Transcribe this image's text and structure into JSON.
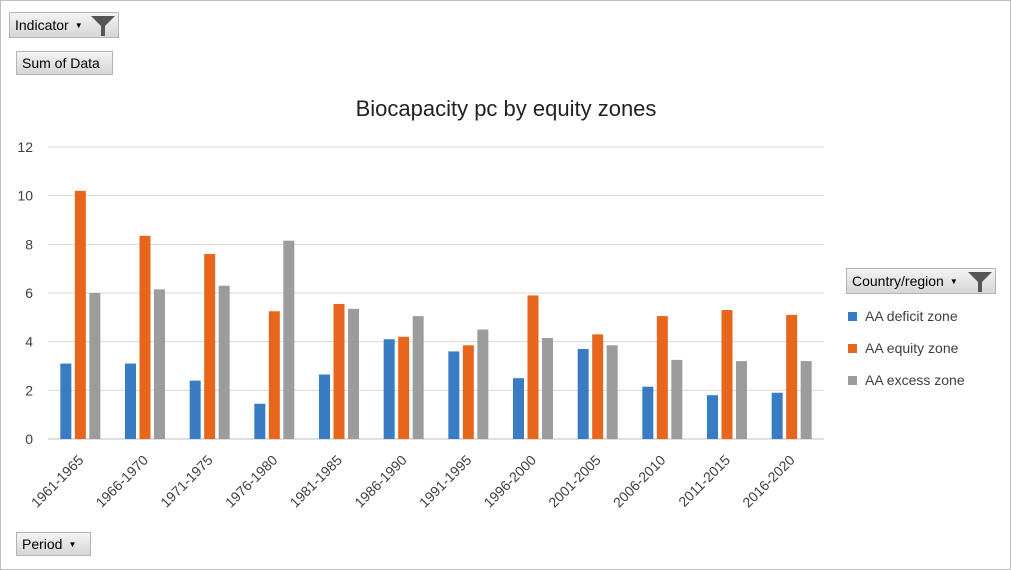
{
  "filters": {
    "indicator_label": "Indicator",
    "sum_label": "Sum of Data",
    "period_label": "Period",
    "legend_field_label": "Country/region"
  },
  "colors": {
    "deficit": "#3a7cc4",
    "equity": "#e8661c",
    "excess": "#9c9c9c",
    "grid": "#d9d9d9",
    "axis_text": "#404040"
  },
  "chart_data": {
    "type": "bar",
    "title": "Biocapacity pc by equity zones",
    "xlabel": "",
    "ylabel": "",
    "ylim": [
      0,
      12
    ],
    "yticks": [
      0,
      2,
      4,
      6,
      8,
      10,
      12
    ],
    "grid": true,
    "legend_position": "right",
    "categories": [
      "1961-1965",
      "1966-1970",
      "1971-1975",
      "1976-1980",
      "1981-1985",
      "1986-1990",
      "1991-1995",
      "1996-2000",
      "2001-2005",
      "2006-2010",
      "2011-2015",
      "2016-2020"
    ],
    "series": [
      {
        "name": "AA deficit zone",
        "color_key": "deficit",
        "values": [
          3.1,
          3.1,
          2.4,
          1.45,
          2.65,
          4.1,
          3.6,
          2.5,
          3.7,
          2.15,
          1.8,
          1.9
        ]
      },
      {
        "name": "AA equity zone",
        "color_key": "equity",
        "values": [
          10.2,
          8.35,
          7.6,
          5.25,
          5.55,
          4.2,
          3.85,
          5.9,
          4.3,
          5.05,
          5.3,
          5.1
        ]
      },
      {
        "name": "AA excess zone",
        "color_key": "excess",
        "values": [
          6.0,
          6.15,
          6.3,
          8.15,
          5.35,
          5.05,
          4.5,
          4.15,
          3.85,
          3.25,
          3.2,
          3.2
        ]
      }
    ]
  }
}
